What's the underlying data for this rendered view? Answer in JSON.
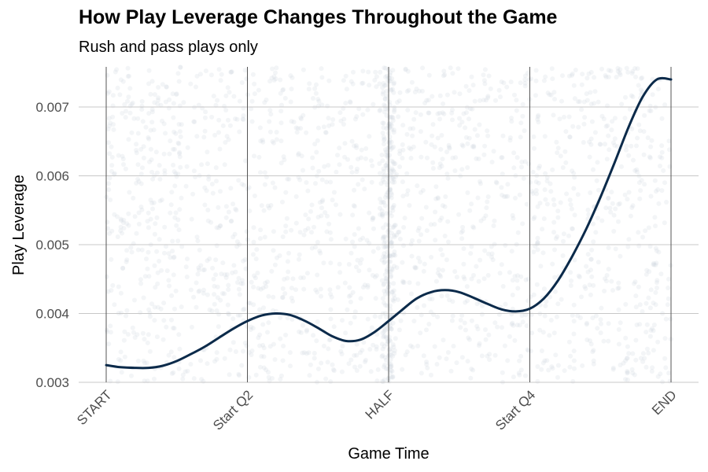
{
  "chart_data": {
    "type": "line",
    "title": "How Play Leverage Changes Throughout the Game",
    "subtitle": "Rush and pass plays only",
    "xlabel": "Game Time",
    "ylabel": "Play Leverage",
    "x_ticks": [
      "START",
      "Start Q2",
      "HALF",
      "Start Q4",
      "END"
    ],
    "y_ticks": [
      "0.003",
      "0.004",
      "0.005",
      "0.006",
      "0.007"
    ],
    "xlim": [
      0,
      3600
    ],
    "ylim": [
      0.003,
      0.0076
    ],
    "grid": true,
    "series": [
      {
        "x": [
          0,
          90,
          180,
          270,
          360,
          450,
          540,
          630,
          720,
          810,
          900,
          990,
          1080,
          1170,
          1260,
          1350,
          1440,
          1530,
          1620,
          1710,
          1800,
          1890,
          1980,
          2070,
          2160,
          2250,
          2340,
          2430,
          2520,
          2610,
          2700,
          2790,
          2880,
          2970,
          3060,
          3150,
          3240,
          3330,
          3420,
          3510,
          3600
        ],
        "values": [
          0.00325,
          0.00322,
          0.00321,
          0.00321,
          0.00324,
          0.00331,
          0.00341,
          0.00352,
          0.00365,
          0.00378,
          0.00389,
          0.00397,
          0.004,
          0.00398,
          0.0039,
          0.00379,
          0.00367,
          0.0036,
          0.00362,
          0.00373,
          0.00389,
          0.00406,
          0.00422,
          0.00431,
          0.00434,
          0.00431,
          0.00423,
          0.00414,
          0.00406,
          0.00403,
          0.00407,
          0.00422,
          0.00448,
          0.00483,
          0.00523,
          0.00569,
          0.00619,
          0.00671,
          0.00715,
          0.0074,
          0.0074
        ],
        "color": "#0b2a4a"
      }
    ],
    "scatter_color": "#cfd9df"
  }
}
